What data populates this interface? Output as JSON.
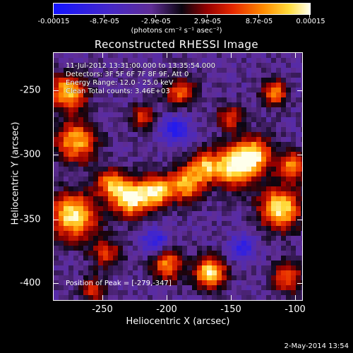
{
  "colorbar": {
    "tick_labels": [
      "-0.00015",
      "-8.7e-05",
      "-2.9e-05",
      "2.9e-05",
      "8.7e-05",
      "0.00015"
    ],
    "unit": "(photons cm⁻² s⁻¹ asec⁻²)"
  },
  "title": "Reconstructed RHESSI Image",
  "info": {
    "time": "11-Jul-2012 13:31:00.000 to 13:35:54.000",
    "detectors": "Detectors: 3F 5F 6F 7F 8F 9F, Att 0",
    "energy": "Energy Range: 12.0 - 25.0 keV",
    "clean": "Clean     Total counts: 3.46E+03"
  },
  "peak": "Position of Peak = [-279,-347]",
  "axes": {
    "xlabel": "Heliocentric X (arcsec)",
    "ylabel": "Heliocentric Y (arcsec)",
    "xticks": [
      "-250",
      "-200",
      "-150",
      "-100"
    ],
    "yticks": [
      "-250",
      "-300",
      "-350",
      "-400"
    ]
  },
  "footer": "2-May-2014 13:54"
}
